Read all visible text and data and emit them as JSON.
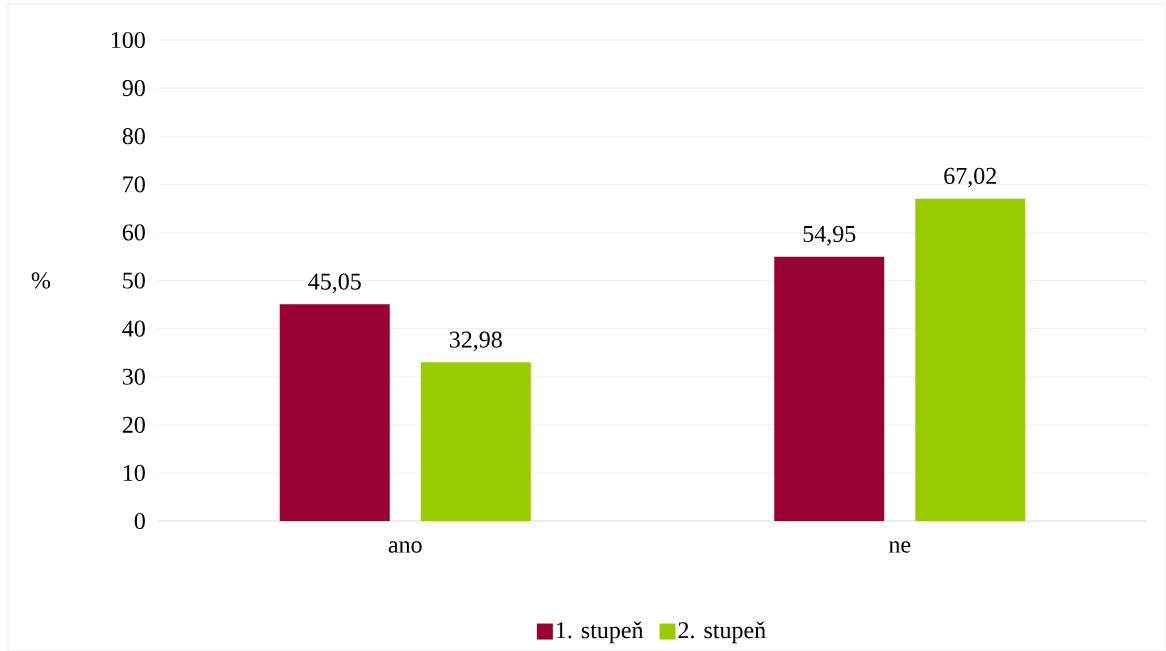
{
  "chart_data": {
    "type": "bar",
    "ylabel": "%",
    "categories": [
      "ano",
      "ne"
    ],
    "series": [
      {
        "name": "1. stupeň",
        "color": "#990033",
        "values": [
          45.05,
          54.95
        ],
        "value_labels": [
          "45,05",
          "54,95"
        ]
      },
      {
        "name": "2. stupeň",
        "color": "#99cc00",
        "values": [
          32.98,
          67.02
        ],
        "value_labels": [
          "32,98",
          "67,02"
        ]
      }
    ],
    "ylim": [
      0,
      100
    ],
    "yticks": [
      0,
      10,
      20,
      30,
      40,
      50,
      60,
      70,
      80,
      90,
      100
    ],
    "grid": "y",
    "legend": "bottom"
  }
}
